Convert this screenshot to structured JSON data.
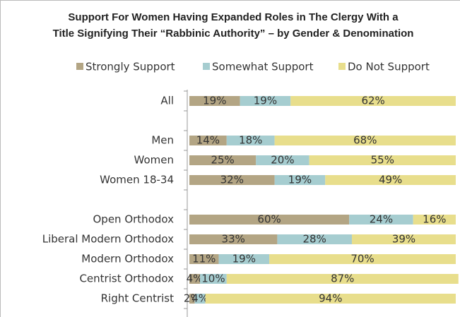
{
  "chart_data": {
    "type": "stacked-bar-horizontal",
    "title": [
      "Support For Women Having Expanded Roles in The Clergy With a",
      "Title Signifying Their “Rabbinic Authority” – by Gender & Denomination"
    ],
    "categories": [
      "All",
      null,
      "Men",
      "Women",
      "Women 18-34",
      null,
      "Open Orthodox",
      "Liberal Modern Orthodox",
      "Modern Orthodox",
      "Centrist Orthodox",
      "Right Centrist"
    ],
    "series": [
      {
        "name": "Strongly Support",
        "color": "#b3a584",
        "values": [
          19,
          null,
          14,
          25,
          32,
          null,
          60,
          33,
          11,
          4,
          2
        ],
        "value_labels": [
          "19%",
          null,
          "14%",
          "25%",
          "32%",
          null,
          "60%",
          "33%",
          "11%",
          "4%",
          "2%"
        ]
      },
      {
        "name": "Somewhat Support",
        "color": "#a6cdd0",
        "values": [
          19,
          null,
          18,
          20,
          19,
          null,
          24,
          28,
          19,
          10,
          4
        ],
        "value_labels": [
          "19%",
          null,
          "18%",
          "20%",
          "19%",
          null,
          "24%",
          "28%",
          "19%",
          "10%",
          "4%"
        ]
      },
      {
        "name": "Do Not Support",
        "color": "#e8de8c",
        "values": [
          62,
          null,
          68,
          55,
          49,
          null,
          16,
          39,
          70,
          87,
          94
        ],
        "value_labels": [
          "62%",
          null,
          "68%",
          "55%",
          "49%",
          null,
          "16%",
          "39%",
          "70%",
          "87%",
          "94%"
        ]
      }
    ],
    "xlim": [
      0,
      100
    ]
  }
}
